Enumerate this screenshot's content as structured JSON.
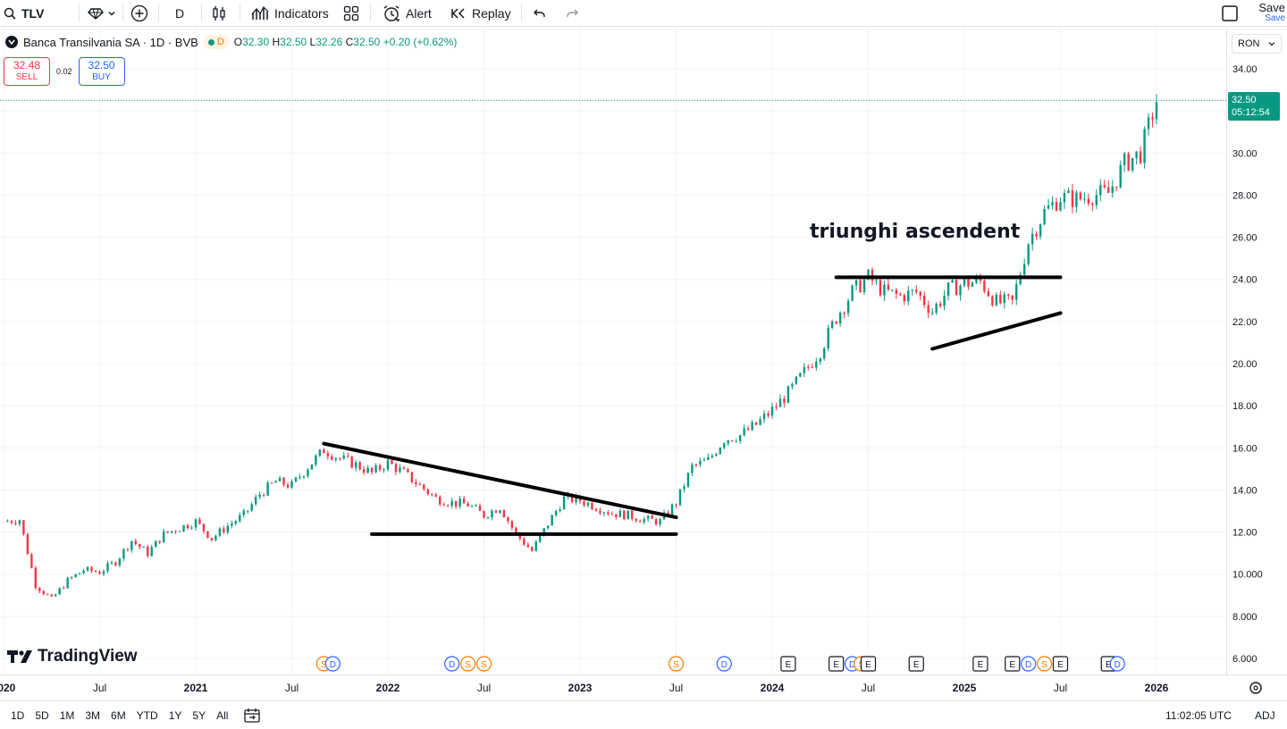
{
  "toolbar": {
    "symbol": "TLV",
    "interval": "D",
    "indicators_label": "Indicators",
    "alert_label": "Alert",
    "replay_label": "Replay",
    "save_label": "Save",
    "save_sub_label": "Save"
  },
  "legend": {
    "title": "Banca Transilvania SA · 1D · BVB",
    "session_badge": "D",
    "open_label": "O",
    "open": "32.30",
    "high_label": "H",
    "high": "32.50",
    "low_label": "L",
    "low": "32.26",
    "close_label": "C",
    "close": "32.50",
    "change": "+0.20 (+0.62%)"
  },
  "trade": {
    "sell_price": "32.48",
    "sell_label": "SELL",
    "spread": "0.02",
    "buy_price": "32.50",
    "buy_label": "BUY"
  },
  "currency": "RON",
  "last_price": {
    "price": "32.50",
    "countdown": "05:12:54"
  },
  "annotation": "triunghi ascendent",
  "watermark": "TradingView",
  "price_ticks": [
    "34.00",
    "32.00",
    "30.00",
    "28.00",
    "26.00",
    "24.00",
    "22.00",
    "20.00",
    "18.00",
    "16.00",
    "14.00",
    "12.00",
    "10.000",
    "8.000",
    "6.000"
  ],
  "time_labels": [
    {
      "label": "2020",
      "bold": true
    },
    {
      "label": "Jul",
      "bold": false
    },
    {
      "label": "2021",
      "bold": true
    },
    {
      "label": "Jul",
      "bold": false
    },
    {
      "label": "2022",
      "bold": true
    },
    {
      "label": "Jul",
      "bold": false
    },
    {
      "label": "2023",
      "bold": true
    },
    {
      "label": "Jul",
      "bold": false
    },
    {
      "label": "2024",
      "bold": true
    },
    {
      "label": "Jul",
      "bold": false
    },
    {
      "label": "2025",
      "bold": true
    },
    {
      "label": "Jul",
      "bold": false
    },
    {
      "label": "2026",
      "bold": true
    }
  ],
  "events": [
    {
      "date": "2021-09",
      "type": "S"
    },
    {
      "date": "2021-09",
      "type": "D"
    },
    {
      "date": "2022-05",
      "type": "D"
    },
    {
      "date": "2022-06",
      "type": "S"
    },
    {
      "date": "2022-07",
      "type": "S"
    },
    {
      "date": "2023-07",
      "type": "S"
    },
    {
      "date": "2023-10",
      "type": "D"
    },
    {
      "date": "2024-02",
      "type": "E"
    },
    {
      "date": "2024-05",
      "type": "E"
    },
    {
      "date": "2024-06",
      "type": "D"
    },
    {
      "date": "2024-06",
      "type": "S"
    },
    {
      "date": "2024-07",
      "type": "E"
    },
    {
      "date": "2024-10",
      "type": "E"
    },
    {
      "date": "2025-02",
      "type": "E"
    },
    {
      "date": "2025-04",
      "type": "E"
    },
    {
      "date": "2025-05",
      "type": "D"
    },
    {
      "date": "2025-06",
      "type": "S"
    },
    {
      "date": "2025-07",
      "type": "E"
    },
    {
      "date": "2025-10",
      "type": "E"
    },
    {
      "date": "2025-10",
      "type": "D"
    }
  ],
  "bottom": {
    "ranges": [
      "1D",
      "5D",
      "1M",
      "3M",
      "6M",
      "YTD",
      "1Y",
      "5Y",
      "All"
    ],
    "clock": "11:02:05 UTC",
    "adj": "ADJ"
  },
  "colors": {
    "up": "#089981",
    "down": "#f23645",
    "dividend": "#2962ff",
    "split": "#f57c00",
    "earnings": "#131722"
  },
  "chart_data": {
    "type": "candlestick",
    "title": "Banca Transilvania SA · 1D · BVB",
    "xlabel": "",
    "ylabel": "",
    "ylim": [
      5.5,
      35.0
    ],
    "xlim": [
      "2020-01",
      "2026-02"
    ],
    "grid": true,
    "series": [
      {
        "name": "TLV",
        "x": [
          "2020-01",
          "2020-02",
          "2020-03",
          "2020-04",
          "2020-05",
          "2020-06",
          "2020-07",
          "2020-08",
          "2020-09",
          "2020-10",
          "2020-11",
          "2020-12",
          "2021-01",
          "2021-02",
          "2021-03",
          "2021-04",
          "2021-05",
          "2021-06",
          "2021-07",
          "2021-08",
          "2021-09",
          "2021-10",
          "2021-11",
          "2021-12",
          "2022-01",
          "2022-02",
          "2022-03",
          "2022-04",
          "2022-05",
          "2022-06",
          "2022-07",
          "2022-08",
          "2022-09",
          "2022-10",
          "2022-11",
          "2022-12",
          "2023-01",
          "2023-02",
          "2023-03",
          "2023-04",
          "2023-05",
          "2023-06",
          "2023-07",
          "2023-08",
          "2023-09",
          "2023-10",
          "2023-11",
          "2023-12",
          "2024-01",
          "2024-02",
          "2024-03",
          "2024-04",
          "2024-05",
          "2024-06",
          "2024-07",
          "2024-08",
          "2024-09",
          "2024-10",
          "2024-11",
          "2024-12",
          "2025-01",
          "2025-02",
          "2025-03",
          "2025-04",
          "2025-05",
          "2025-06",
          "2025-07",
          "2025-08",
          "2025-09",
          "2025-10",
          "2025-11",
          "2025-12",
          "2026-01"
        ],
        "close": [
          12.5,
          12.6,
          9.5,
          8.8,
          9.7,
          10.2,
          10.1,
          10.6,
          11.6,
          11.0,
          11.9,
          12.2,
          12.5,
          11.7,
          12.3,
          12.8,
          13.8,
          14.4,
          14.2,
          15.1,
          15.9,
          15.5,
          15.2,
          14.8,
          15.3,
          14.8,
          14.2,
          13.6,
          13.4,
          13.3,
          12.8,
          13.2,
          11.9,
          11.1,
          12.4,
          13.6,
          13.5,
          13.2,
          12.9,
          12.8,
          12.6,
          12.5,
          13.4,
          15.1,
          15.4,
          16.4,
          16.6,
          17.1,
          17.8,
          18.6,
          19.6,
          20.6,
          22.2,
          23.4,
          24.1,
          23.4,
          23.2,
          23.4,
          22.5,
          23.5,
          23.8,
          23.9,
          22.9,
          22.9,
          25.8,
          27.2,
          27.9,
          27.8,
          28.0,
          28.1,
          29.5,
          30.0,
          32.5
        ]
      }
    ],
    "annotations": [
      {
        "type": "trendline",
        "from": {
          "x": "2021-09",
          "y": 16.2
        },
        "to": {
          "x": "2023-07",
          "y": 12.7
        }
      },
      {
        "type": "horizontal",
        "from": {
          "x": "2021-12",
          "y": 11.9
        },
        "to": {
          "x": "2023-07",
          "y": 11.9
        }
      },
      {
        "type": "horizontal",
        "from": {
          "x": "2024-05",
          "y": 24.1
        },
        "to": {
          "x": "2025-07",
          "y": 24.1
        }
      },
      {
        "type": "trendline",
        "from": {
          "x": "2024-11",
          "y": 20.7
        },
        "to": {
          "x": "2025-07",
          "y": 22.4
        }
      },
      {
        "type": "text",
        "x": "2024-04",
        "y": 26.1,
        "text": "triunghi ascendent"
      }
    ]
  }
}
